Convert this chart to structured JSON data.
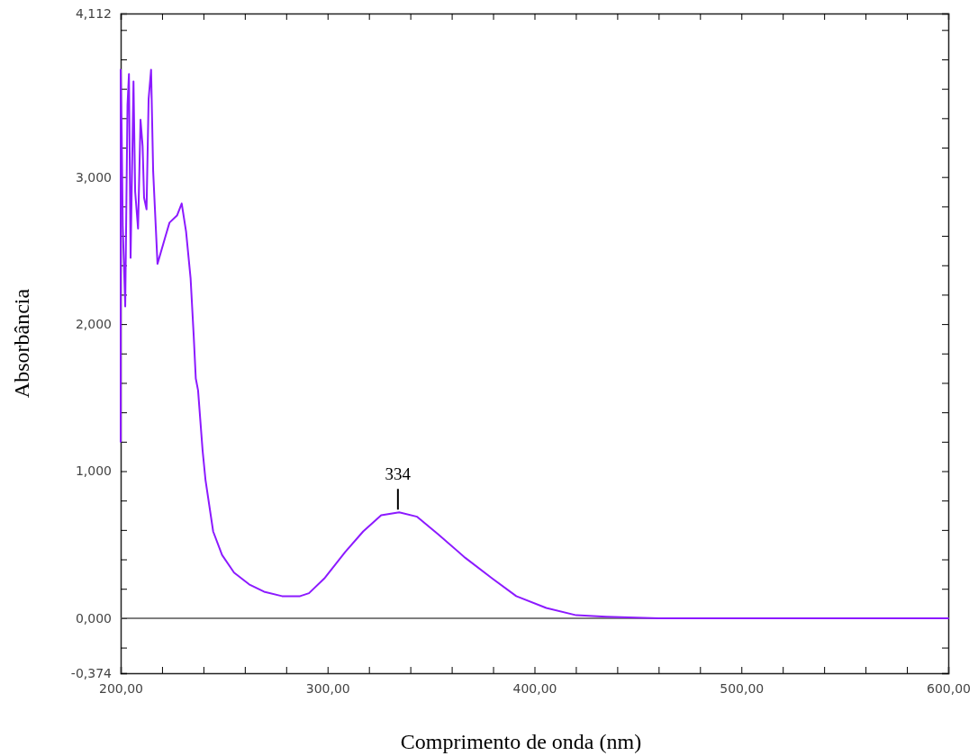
{
  "chart_data": {
    "type": "line",
    "xlabel": "Comprimento de onda (nm)",
    "ylabel": "Absorbância",
    "xlim": [
      200,
      600
    ],
    "ylim": [
      -0.374,
      4.112
    ],
    "xticks": [
      {
        "value": 200,
        "label": "200,00"
      },
      {
        "value": 220,
        "label": null
      },
      {
        "value": 240,
        "label": null
      },
      {
        "value": 260,
        "label": null
      },
      {
        "value": 280,
        "label": null
      },
      {
        "value": 300,
        "label": "300,00"
      },
      {
        "value": 320,
        "label": null
      },
      {
        "value": 340,
        "label": null
      },
      {
        "value": 360,
        "label": null
      },
      {
        "value": 380,
        "label": null
      },
      {
        "value": 400,
        "label": "400,00"
      },
      {
        "value": 420,
        "label": null
      },
      {
        "value": 440,
        "label": null
      },
      {
        "value": 460,
        "label": null
      },
      {
        "value": 480,
        "label": null
      },
      {
        "value": 500,
        "label": "500,00"
      },
      {
        "value": 520,
        "label": null
      },
      {
        "value": 540,
        "label": null
      },
      {
        "value": 560,
        "label": null
      },
      {
        "value": 580,
        "label": null
      },
      {
        "value": 600,
        "label": "600,00"
      }
    ],
    "yticks": [
      {
        "value": -0.374,
        "label": "-0,374"
      },
      {
        "value": -0.2,
        "label": null
      },
      {
        "value": 0,
        "label": "0,000"
      },
      {
        "value": 0.2,
        "label": null
      },
      {
        "value": 0.4,
        "label": null
      },
      {
        "value": 0.6,
        "label": null
      },
      {
        "value": 0.8,
        "label": null
      },
      {
        "value": 1,
        "label": "1,000"
      },
      {
        "value": 1.2,
        "label": null
      },
      {
        "value": 1.4,
        "label": null
      },
      {
        "value": 1.6,
        "label": null
      },
      {
        "value": 1.8,
        "label": null
      },
      {
        "value": 2,
        "label": "2,000"
      },
      {
        "value": 2.2,
        "label": null
      },
      {
        "value": 2.4,
        "label": null
      },
      {
        "value": 2.6,
        "label": null
      },
      {
        "value": 2.8,
        "label": null
      },
      {
        "value": 3,
        "label": "3,000"
      },
      {
        "value": 3.2,
        "label": null
      },
      {
        "value": 3.4,
        "label": null
      },
      {
        "value": 3.6,
        "label": null
      },
      {
        "value": 3.8,
        "label": null
      },
      {
        "value": 4,
        "label": null
      },
      {
        "value": 4.112,
        "label": "4,112"
      }
    ],
    "grid": false,
    "ref_lines": [
      {
        "axis": "y",
        "value": 0,
        "color": "#555555"
      }
    ],
    "annotations": [
      {
        "text": "334",
        "x": 334,
        "y": 0.72
      }
    ],
    "series": [
      {
        "color": "#8c1aff",
        "x": [
          200,
          200,
          200.5,
          201,
          202.2,
          203.3,
          204,
          204.8,
          206.2,
          207,
          208.4,
          209.6,
          210.6,
          211.3,
          212.5,
          213.5,
          214.7,
          215.7,
          217.8,
          221.5,
          223.6,
          227.3,
          229.5,
          231.6,
          233.8,
          235.3,
          236.3,
          237.4,
          239.6,
          241,
          244.7,
          249,
          254.8,
          262.1,
          269.3,
          278,
          286.7,
          291,
          298.4,
          308.5,
          317.2,
          325.9,
          334.6,
          343.3,
          353.5,
          366.6,
          379.6,
          391.2,
          405.7,
          420.2,
          434.6,
          460,
          600
        ],
        "values": [
          1.2,
          3.73,
          3.29,
          2.67,
          2.12,
          3.49,
          3.7,
          2.45,
          3.65,
          2.9,
          2.65,
          3.39,
          3.21,
          2.86,
          2.78,
          3.53,
          3.73,
          3.04,
          2.41,
          2.59,
          2.69,
          2.74,
          2.82,
          2.63,
          2.31,
          1.92,
          1.63,
          1.55,
          1.14,
          0.94,
          0.59,
          0.43,
          0.31,
          0.23,
          0.18,
          0.15,
          0.15,
          0.17,
          0.27,
          0.45,
          0.59,
          0.7,
          0.72,
          0.69,
          0.57,
          0.41,
          0.27,
          0.15,
          0.07,
          0.02,
          0.01,
          0,
          0
        ]
      }
    ]
  }
}
